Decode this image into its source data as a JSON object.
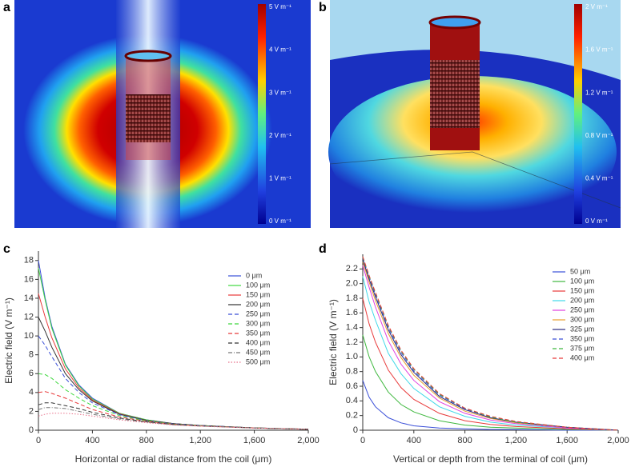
{
  "panels": [
    {
      "label": "a",
      "colorbar_labels": [
        "5 V m⁻¹",
        "4 V m⁻¹",
        "3 V m⁻¹",
        "2 V m⁻¹",
        "1 V m⁻¹",
        "0 V m⁻¹"
      ]
    },
    {
      "label": "b",
      "colorbar_labels": [
        "2 V m⁻¹",
        "1.6 V m⁻¹",
        "1.2 V m⁻¹",
        "0.8 V m⁻¹",
        "0.4 V m⁻¹",
        "0 V m⁻¹"
      ]
    }
  ],
  "chart_data": [
    {
      "type": "line",
      "label": "c",
      "xlabel": "Horizontal or radial distance from the coil (μm)",
      "ylabel": "Electric field (V m⁻¹)",
      "x": [
        0,
        50,
        100,
        200,
        300,
        400,
        600,
        800,
        1000,
        1200,
        1600,
        2000
      ],
      "xlim": [
        0,
        2000
      ],
      "xticks": [
        0,
        400,
        800,
        {
          "value": 1200,
          "label": "1,200"
        },
        {
          "value": 1600,
          "label": "1,600"
        },
        {
          "value": 2000,
          "label": "2,000"
        }
      ],
      "ylim": [
        0,
        19
      ],
      "yticks": [
        0,
        2,
        4,
        6,
        8,
        10,
        12,
        14,
        16,
        18
      ],
      "series": [
        {
          "name": "0 μm",
          "color": "#3a4fd8",
          "dash": "solid",
          "values": [
            18,
            14,
            11,
            7,
            4.8,
            3.4,
            1.8,
            1.1,
            0.7,
            0.5,
            0.25,
            0.1
          ]
        },
        {
          "name": "100 μm",
          "color": "#3fd83f",
          "dash": "solid",
          "values": [
            17.2,
            13.8,
            10.8,
            6.9,
            4.7,
            3.3,
            1.8,
            1.1,
            0.7,
            0.5,
            0.25,
            0.1
          ]
        },
        {
          "name": "150 μm",
          "color": "#e83a3a",
          "dash": "solid",
          "values": [
            14.5,
            12,
            9.8,
            6.5,
            4.5,
            3.2,
            1.75,
            1.05,
            0.7,
            0.5,
            0.25,
            0.1
          ]
        },
        {
          "name": "200 μm",
          "color": "#333333",
          "dash": "solid",
          "values": [
            12,
            10.5,
            8.8,
            6,
            4.3,
            3.1,
            1.7,
            1.05,
            0.7,
            0.5,
            0.25,
            0.1
          ]
        },
        {
          "name": "250 μm",
          "color": "#3a4fd8",
          "dash": "dashed",
          "values": [
            10,
            9,
            7.8,
            5.5,
            4,
            2.9,
            1.65,
            1,
            0.68,
            0.5,
            0.25,
            0.1
          ]
        },
        {
          "name": "300 μm",
          "color": "#3fd83f",
          "dash": "dashed",
          "values": [
            6,
            5.9,
            5.5,
            4.3,
            3.4,
            2.6,
            1.55,
            1,
            0.65,
            0.48,
            0.25,
            0.1
          ]
        },
        {
          "name": "350 μm",
          "color": "#e83a3a",
          "dash": "dashed",
          "values": [
            4,
            4.1,
            3.9,
            3.4,
            2.8,
            2.2,
            1.4,
            0.95,
            0.63,
            0.46,
            0.25,
            0.1
          ]
        },
        {
          "name": "400 μm",
          "color": "#333333",
          "dash": "dashed",
          "values": [
            2.7,
            2.9,
            2.9,
            2.6,
            2.3,
            1.9,
            1.3,
            0.9,
            0.6,
            0.45,
            0.24,
            0.1
          ]
        },
        {
          "name": "450 μm",
          "color": "#777777",
          "dash": "dashdot",
          "values": [
            2.2,
            2.4,
            2.4,
            2.3,
            2,
            1.7,
            1.2,
            0.85,
            0.58,
            0.44,
            0.24,
            0.1
          ]
        },
        {
          "name": "500 μm",
          "color": "#e8708a",
          "dash": "dotted",
          "values": [
            1.5,
            1.7,
            1.8,
            1.8,
            1.7,
            1.5,
            1.1,
            0.8,
            0.55,
            0.42,
            0.23,
            0.1
          ]
        }
      ]
    },
    {
      "type": "line",
      "label": "d",
      "xlabel": "Vertical or depth from the terminal of coil (μm)",
      "ylabel": "Electric field (V m⁻¹)",
      "x": [
        0,
        50,
        100,
        200,
        300,
        400,
        600,
        800,
        1000,
        1200,
        1600,
        2000
      ],
      "xlim": [
        0,
        2000
      ],
      "xticks": [
        0,
        400,
        800,
        {
          "value": 1200,
          "label": "1,200"
        },
        {
          "value": 1600,
          "label": "1,600"
        },
        {
          "value": 2000,
          "label": "2,000"
        }
      ],
      "ylim": [
        0,
        2.4
      ],
      "yticks": [
        0,
        0.2,
        0.4,
        0.6,
        0.8,
        {
          "value": 1,
          "label": "1.0"
        },
        1.2,
        1.4,
        1.6,
        1.8,
        {
          "value": 2,
          "label": "2.0"
        },
        2.2
      ],
      "series": [
        {
          "name": "50 μm",
          "color": "#3a4fd8",
          "dash": "solid",
          "values": [
            0.68,
            0.45,
            0.32,
            0.17,
            0.1,
            0.06,
            0.03,
            0.02,
            0.01,
            0.01,
            0,
            0
          ]
        },
        {
          "name": "100 μm",
          "color": "#3fb83f",
          "dash": "solid",
          "values": [
            1.3,
            1,
            0.8,
            0.52,
            0.35,
            0.25,
            0.13,
            0.07,
            0.04,
            0.03,
            0.01,
            0
          ]
        },
        {
          "name": "150 μm",
          "color": "#e83a3a",
          "dash": "solid",
          "values": [
            1.8,
            1.45,
            1.2,
            0.82,
            0.58,
            0.42,
            0.23,
            0.13,
            0.08,
            0.05,
            0.02,
            0
          ]
        },
        {
          "name": "200 μm",
          "color": "#3fd8e8",
          "dash": "solid",
          "values": [
            2.1,
            1.75,
            1.5,
            1.05,
            0.77,
            0.57,
            0.32,
            0.19,
            0.11,
            0.07,
            0.03,
            0
          ]
        },
        {
          "name": "250 μm",
          "color": "#e03fe0",
          "dash": "solid",
          "values": [
            2.25,
            1.95,
            1.68,
            1.22,
            0.9,
            0.68,
            0.39,
            0.23,
            0.14,
            0.09,
            0.03,
            0
          ]
        },
        {
          "name": "300 μm",
          "color": "#e8a030",
          "dash": "solid",
          "values": [
            2.3,
            2.02,
            1.77,
            1.32,
            0.99,
            0.75,
            0.44,
            0.26,
            0.16,
            0.1,
            0.04,
            0
          ]
        },
        {
          "name": "325 μm",
          "color": "#2a2a80",
          "dash": "solid",
          "values": [
            2.33,
            2.06,
            1.82,
            1.37,
            1.03,
            0.79,
            0.46,
            0.28,
            0.17,
            0.11,
            0.04,
            0
          ]
        },
        {
          "name": "350 μm",
          "color": "#3a4fd8",
          "dash": "dashed",
          "values": [
            2.35,
            2.09,
            1.85,
            1.4,
            1.06,
            0.81,
            0.48,
            0.29,
            0.18,
            0.11,
            0.04,
            0
          ]
        },
        {
          "name": "375 μm",
          "color": "#3fb83f",
          "dash": "dashed",
          "values": [
            2.36,
            2.1,
            1.87,
            1.42,
            1.08,
            0.83,
            0.49,
            0.3,
            0.18,
            0.11,
            0.04,
            0
          ]
        },
        {
          "name": "400 μm",
          "color": "#e83a3a",
          "dash": "dashed",
          "values": [
            2.37,
            2.11,
            1.88,
            1.43,
            1.09,
            0.84,
            0.5,
            0.3,
            0.19,
            0.12,
            0.04,
            0
          ]
        }
      ]
    }
  ]
}
